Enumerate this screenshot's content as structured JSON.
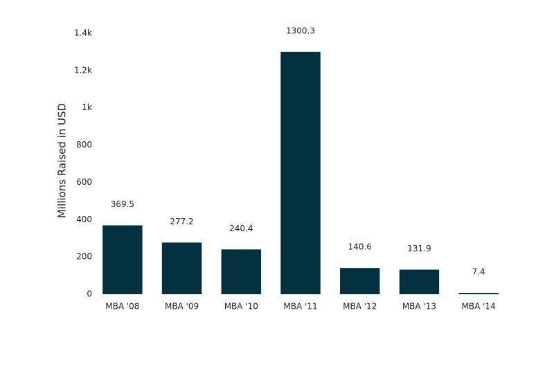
{
  "chart_data": {
    "type": "bar",
    "y_axis_label": "Millions Raised in USD",
    "categories": [
      "MBA '08",
      "MBA '09",
      "MBA '10",
      "MBA '11",
      "MBA '12",
      "MBA '13",
      "MBA '14"
    ],
    "values": [
      369.5,
      277.2,
      240.4,
      1300.3,
      140.6,
      131.9,
      7.4
    ],
    "color": "#04313f",
    "ylim": [
      0,
      1400
    ],
    "yticks": [
      0,
      200,
      400,
      600,
      800,
      {
        "value": 1000,
        "label": "1k"
      },
      {
        "value": 1200,
        "label": "1.2k"
      },
      {
        "value": 1400,
        "label": "1.4k"
      }
    ],
    "grid": false
  }
}
